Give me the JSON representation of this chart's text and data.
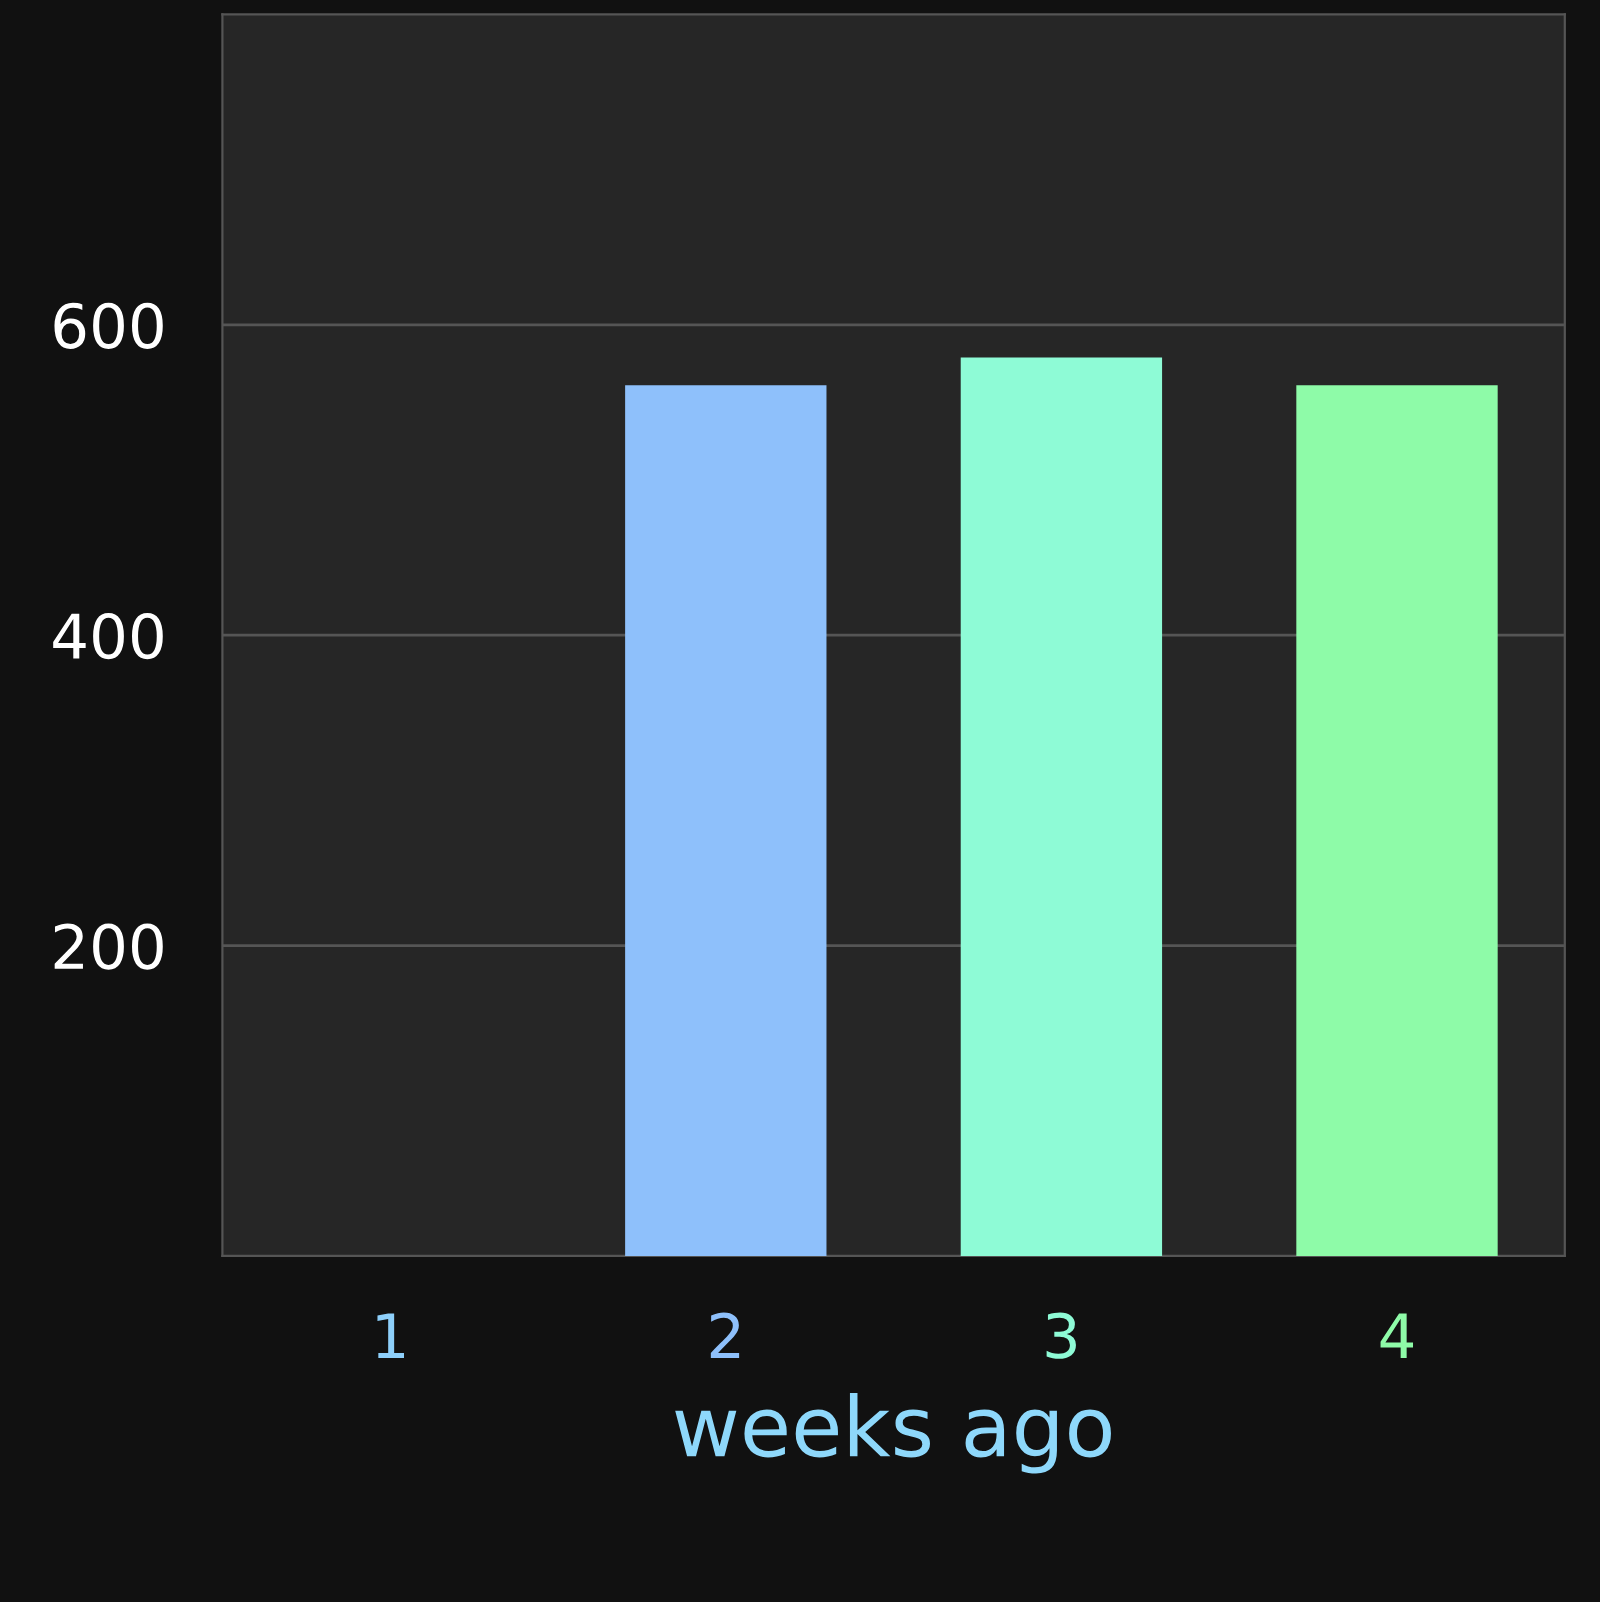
{
  "chart_data": {
    "type": "bar",
    "xlabel": "weeks ago",
    "categories": [
      "1",
      "2",
      "3",
      "4"
    ],
    "values": [
      0,
      561,
      579,
      561
    ],
    "colors": [
      "#8ed0fb",
      "#8ec0fb",
      "#8efbd6",
      "#8efba8"
    ],
    "ylim": [
      0,
      800
    ],
    "yticks": [
      200,
      400,
      600
    ],
    "grid": "y",
    "legend": false
  }
}
